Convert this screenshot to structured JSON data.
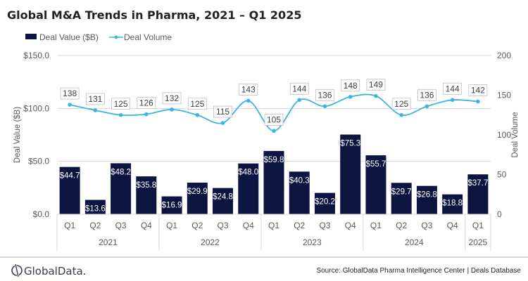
{
  "chart_data": {
    "type": "bar",
    "title": "Global M&A Trends in Pharma, 2021 – Q1 2025",
    "categories": [
      "Q1",
      "Q2",
      "Q3",
      "Q4",
      "Q1",
      "Q2",
      "Q3",
      "Q4",
      "Q1",
      "Q2",
      "Q3",
      "Q4",
      "Q1",
      "Q2",
      "Q3",
      "Q4",
      "Q1"
    ],
    "year_groups": [
      {
        "label": "2021",
        "count": 4
      },
      {
        "label": "2022",
        "count": 4
      },
      {
        "label": "2023",
        "count": 4
      },
      {
        "label": "2024",
        "count": 4
      },
      {
        "label": "2025",
        "count": 1
      }
    ],
    "series": [
      {
        "name": "Deal Value ($B)",
        "type": "bar",
        "axis": "left",
        "color": "#0c1440",
        "values": [
          44.7,
          13.6,
          48.2,
          35.8,
          16.9,
          29.9,
          24.8,
          48.0,
          59.8,
          40.3,
          20.2,
          75.3,
          55.7,
          29.7,
          26.8,
          18.8,
          37.7
        ],
        "labels": [
          "$44.7",
          "$13.6",
          "$48.2",
          "$35.8",
          "$16.9",
          "$29.9",
          "$24.8",
          "$48.0",
          "$59.8",
          "$40.3",
          "$20.2",
          "$75.3",
          "$55.7",
          "$29.7",
          "$26.8",
          "$18.8",
          "$37.7"
        ]
      },
      {
        "name": "Deal Volume",
        "type": "line",
        "axis": "right",
        "color": "#3bb4e5",
        "smooth": true,
        "values": [
          138,
          131,
          125,
          126,
          132,
          125,
          115,
          143,
          105,
          144,
          136,
          148,
          149,
          125,
          136,
          144,
          142
        ]
      }
    ],
    "ylabel": "Deal Value ($B)",
    "y2label": "Deal Volume",
    "ylim": [
      0,
      150
    ],
    "y2lim": [
      0,
      200
    ],
    "yticks": [
      "$0.0",
      "$50.0",
      "$100.0",
      "$150.0"
    ],
    "ytick_values": [
      0,
      50,
      100,
      150
    ],
    "y2ticks": [
      "0",
      "50",
      "100",
      "150",
      "200"
    ],
    "y2tick_values": [
      0,
      50,
      100,
      150,
      200
    ],
    "grid": true,
    "legend_position": "top-left"
  },
  "footer": {
    "logo_text": "GlobalData.",
    "source": "Source: GlobalData Pharma Intelligence Center | Deals Database"
  }
}
